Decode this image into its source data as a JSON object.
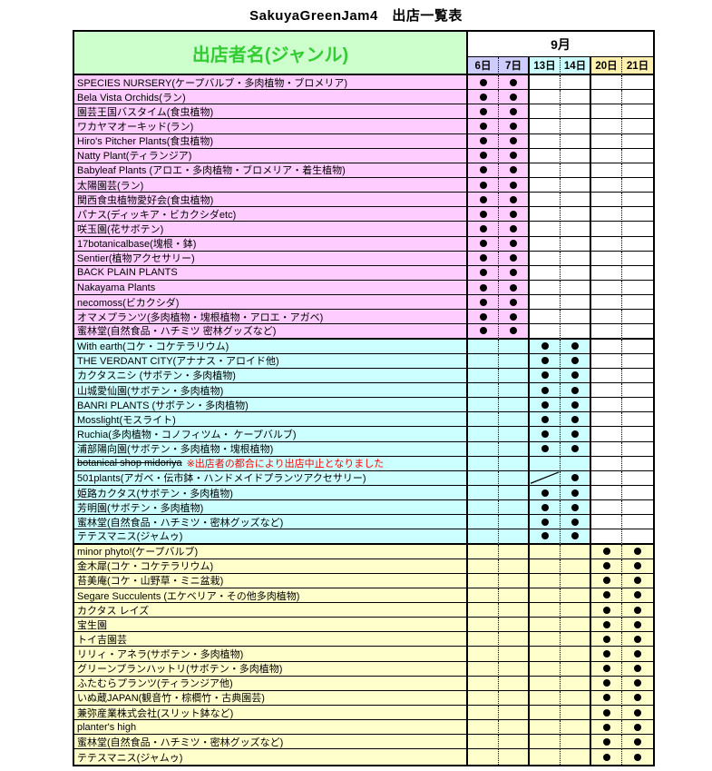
{
  "title": "SakuyaGreenJam4　出店一覧表",
  "table": {
    "header": {
      "name_col": "出店者名(ジャンル)",
      "month": "9月",
      "dates": [
        "6日",
        "7日",
        "13日",
        "14日",
        "20日",
        "21日"
      ]
    },
    "colors": {
      "pink": "#FFCCFF",
      "cyan": "#CCFFFF",
      "yellow": "#FFFFCC",
      "white": "#FFFFFF",
      "lavender_header": "#CCCCFF",
      "cyan_header": "#CCFFFF",
      "yellow_header": "#FFF0B0",
      "green_header_bg": "#CCFFCC",
      "green_header_text": "#33CC33",
      "cancel_note_red": "#FF0000",
      "dot": "#000000"
    },
    "mark_legend": {
      "dot": "●",
      "slash": "斜線(取消)"
    },
    "rows": [
      {
        "name": "SPECIES NURSERY(ケープバルブ・多肉植物・ブロメリア)",
        "section": "pink",
        "marks": [
          "dot",
          "dot",
          "",
          "",
          "",
          ""
        ]
      },
      {
        "name": "Bela Vista Orchids(ラン)",
        "section": "pink",
        "marks": [
          "dot",
          "dot",
          "",
          "",
          "",
          ""
        ]
      },
      {
        "name": "園芸王国バスタイム(食虫植物)",
        "section": "pink",
        "marks": [
          "dot",
          "dot",
          "",
          "",
          "",
          ""
        ]
      },
      {
        "name": "ワカヤマオーキッド(ラン)",
        "section": "pink",
        "marks": [
          "dot",
          "dot",
          "",
          "",
          "",
          ""
        ]
      },
      {
        "name": "Hiro's Pitcher Plants(食虫植物)",
        "section": "pink",
        "marks": [
          "dot",
          "dot",
          "",
          "",
          "",
          ""
        ]
      },
      {
        "name": "Natty Plant(ティランジア)",
        "section": "pink",
        "marks": [
          "dot",
          "dot",
          "",
          "",
          "",
          ""
        ]
      },
      {
        "name": "Babyleaf Plants (アロエ・多肉植物・ブロメリア・着生植物)",
        "section": "pink",
        "marks": [
          "dot",
          "dot",
          "",
          "",
          "",
          ""
        ]
      },
      {
        "name": "太陽園芸(ラン)",
        "section": "pink",
        "marks": [
          "dot",
          "dot",
          "",
          "",
          "",
          ""
        ]
      },
      {
        "name": "関西食虫植物愛好会(食虫植物)",
        "section": "pink",
        "marks": [
          "dot",
          "dot",
          "",
          "",
          "",
          ""
        ]
      },
      {
        "name": "パナス(ディッキア・ビカクシダetc)",
        "section": "pink",
        "marks": [
          "dot",
          "dot",
          "",
          "",
          "",
          ""
        ]
      },
      {
        "name": "咲玉園(花サボテン)",
        "section": "pink",
        "marks": [
          "dot",
          "dot",
          "",
          "",
          "",
          ""
        ]
      },
      {
        "name": "17botanicalbase(塊根・鉢)",
        "section": "pink",
        "marks": [
          "dot",
          "dot",
          "",
          "",
          "",
          ""
        ]
      },
      {
        "name": "Sentier(植物アクセサリー)",
        "section": "pink",
        "marks": [
          "dot",
          "dot",
          "",
          "",
          "",
          ""
        ]
      },
      {
        "name": "BACK PLAIN PLANTS",
        "section": "pink",
        "marks": [
          "dot",
          "dot",
          "",
          "",
          "",
          ""
        ]
      },
      {
        "name": "Nakayama Plants",
        "section": "pink",
        "marks": [
          "dot",
          "dot",
          "",
          "",
          "",
          ""
        ]
      },
      {
        "name": "necomoss(ビカクシダ)",
        "section": "pink",
        "marks": [
          "dot",
          "dot",
          "",
          "",
          "",
          ""
        ]
      },
      {
        "name": "オマメプランツ(多肉植物・塊根植物・アロエ・アガベ)",
        "section": "pink",
        "marks": [
          "dot",
          "dot",
          "",
          "",
          "",
          ""
        ]
      },
      {
        "name": "蜜林堂(自然食品・ハチミツ 密林グッズなど)",
        "section": "pink",
        "marks": [
          "dot",
          "dot",
          "",
          "",
          "",
          ""
        ]
      },
      {
        "name": "With earth(コケ・コケテラリウム)",
        "section": "cyan",
        "marks": [
          "",
          "",
          "dot",
          "dot",
          "",
          ""
        ]
      },
      {
        "name": "THE VERDANT CITY(アナナス・アロイド他)",
        "section": "cyan",
        "marks": [
          "",
          "",
          "dot",
          "dot",
          "",
          ""
        ]
      },
      {
        "name": "カクタスニシ (サボテン・多肉植物)",
        "section": "cyan",
        "marks": [
          "",
          "",
          "dot",
          "dot",
          "",
          ""
        ]
      },
      {
        "name": "山城愛仙園(サボテン・多肉植物)",
        "section": "cyan",
        "marks": [
          "",
          "",
          "dot",
          "dot",
          "",
          ""
        ]
      },
      {
        "name": "BANRI PLANTS (サボテン・多肉植物)",
        "section": "cyan",
        "marks": [
          "",
          "",
          "dot",
          "dot",
          "",
          ""
        ]
      },
      {
        "name": "Mosslight(モスライト)",
        "section": "cyan",
        "marks": [
          "",
          "",
          "dot",
          "dot",
          "",
          ""
        ]
      },
      {
        "name": "Ruchia(多肉植物・コノフィツム・ ケープバルブ)",
        "section": "cyan",
        "marks": [
          "",
          "",
          "dot",
          "dot",
          "",
          ""
        ]
      },
      {
        "name": "浦部陽向園(サボテン・多肉植物・塊根植物)",
        "section": "cyan",
        "marks": [
          "",
          "",
          "dot",
          "dot",
          "",
          ""
        ]
      },
      {
        "name": "botanical shop midoriya",
        "strike": true,
        "note": "※出店者の都合により出店中止となりました",
        "section": "cyan",
        "marks": [
          "",
          "",
          "",
          "",
          "",
          ""
        ]
      },
      {
        "name": "501plants(アガベ・伝市鉢・ハンドメイドプランツアクセサリー)",
        "section": "cyan",
        "marks": [
          "",
          "",
          "slash",
          "dot",
          "",
          ""
        ]
      },
      {
        "name": "姫路カクタス(サボテン・多肉植物)",
        "section": "cyan",
        "marks": [
          "",
          "",
          "dot",
          "dot",
          "",
          ""
        ]
      },
      {
        "name": "芳明園(サボテン・多肉植物)",
        "section": "cyan",
        "marks": [
          "",
          "",
          "dot",
          "dot",
          "",
          ""
        ]
      },
      {
        "name": "蜜林堂(自然食品・ハチミツ・密林グッズなど)",
        "section": "cyan",
        "marks": [
          "",
          "",
          "dot",
          "dot",
          "",
          ""
        ]
      },
      {
        "name": "テテスマニス(ジャムゥ)",
        "section": "cyan",
        "marks": [
          "",
          "",
          "dot",
          "dot",
          "",
          ""
        ]
      },
      {
        "name": "minor phyto!(ケープバルブ)",
        "section": "yellow",
        "marks": [
          "",
          "",
          "",
          "",
          "dot",
          "dot"
        ]
      },
      {
        "name": "金木犀(コケ・コケテラリウム)",
        "section": "yellow",
        "marks": [
          "",
          "",
          "",
          "",
          "dot",
          "dot"
        ]
      },
      {
        "name": "苔美庵(コケ・山野草・ミニ盆栽)",
        "section": "yellow",
        "marks": [
          "",
          "",
          "",
          "",
          "dot",
          "dot"
        ]
      },
      {
        "name": "Segare Succulents (エケベリア・その他多肉植物)",
        "section": "yellow",
        "marks": [
          "",
          "",
          "",
          "",
          "dot",
          "dot"
        ]
      },
      {
        "name": "カクタス レイズ",
        "section": "yellow",
        "marks": [
          "",
          "",
          "",
          "",
          "dot",
          "dot"
        ]
      },
      {
        "name": "宝生園",
        "section": "yellow",
        "marks": [
          "",
          "",
          "",
          "",
          "dot",
          "dot"
        ]
      },
      {
        "name": "トイ吉園芸",
        "section": "yellow",
        "marks": [
          "",
          "",
          "",
          "",
          "dot",
          "dot"
        ]
      },
      {
        "name": "リリィ・アネラ(サボテン・多肉植物)",
        "section": "yellow",
        "marks": [
          "",
          "",
          "",
          "",
          "dot",
          "dot"
        ]
      },
      {
        "name": "グリーンプランハットリ(サボテン・多肉植物)",
        "section": "yellow",
        "marks": [
          "",
          "",
          "",
          "",
          "dot",
          "dot"
        ]
      },
      {
        "name": "ふたむらプランツ(ティランジア他)",
        "section": "yellow",
        "marks": [
          "",
          "",
          "",
          "",
          "dot",
          "dot"
        ]
      },
      {
        "name": "いぬ蔵JAPAN(観音竹・棕櫚竹・古典園芸)",
        "section": "yellow",
        "marks": [
          "",
          "",
          "",
          "",
          "dot",
          "dot"
        ]
      },
      {
        "name": "兼弥産業株式会社(スリット鉢など)",
        "section": "yellow",
        "marks": [
          "",
          "",
          "",
          "",
          "dot",
          "dot"
        ]
      },
      {
        "name": "planter's high",
        "section": "yellow",
        "marks": [
          "",
          "",
          "",
          "",
          "dot",
          "dot"
        ]
      },
      {
        "name": "蜜林堂(自然食品・ハチミツ・密林グッズなど)",
        "section": "yellow",
        "marks": [
          "",
          "",
          "",
          "",
          "dot",
          "dot"
        ]
      },
      {
        "name": "テテスマニス(ジャムゥ)",
        "section": "yellow",
        "marks": [
          "",
          "",
          "",
          "",
          "dot",
          "dot"
        ]
      }
    ]
  }
}
